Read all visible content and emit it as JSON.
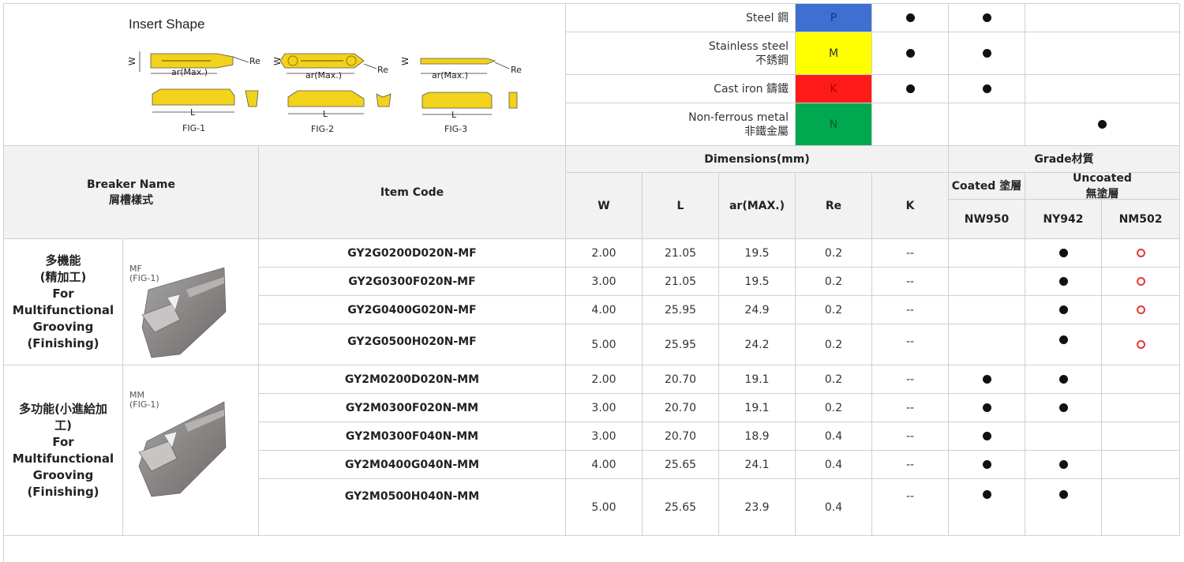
{
  "insert_shape": {
    "title": "Insert Shape",
    "figures": [
      {
        "caption": "FIG-1",
        "w": "W",
        "ar": "ar(Max.)",
        "re": "Re",
        "l": "L"
      },
      {
        "caption": "FIG-2",
        "w": "W",
        "ar": "ar(Max.)",
        "re": "Re",
        "l": "L"
      },
      {
        "caption": "FIG-3",
        "w": "W",
        "ar": "ar(Max.)",
        "re": "Re",
        "l": "L"
      }
    ]
  },
  "materials": [
    {
      "label": "Steel 鋼",
      "code": "P",
      "color": "#3f6fd0",
      "text_color": "#1a2f8a",
      "marks": [
        "dot",
        "dot",
        ""
      ]
    },
    {
      "label_line1": "Stainless steel",
      "label_line2": "不銹鋼",
      "code": "M",
      "color": "#ffff00",
      "text_color": "#333333",
      "marks": [
        "dot",
        "dot",
        ""
      ]
    },
    {
      "label": "Cast iron 鑄鐵",
      "code": "K",
      "color": "#ff1a1a",
      "text_color": "#b00000",
      "marks": [
        "dot",
        "dot",
        ""
      ]
    },
    {
      "label_line1": "Non-ferrous metal",
      "label_line2": "非鐵金屬",
      "code": "N",
      "color": "#00a94f",
      "text_color": "#0a5a2a",
      "marks": [
        "",
        "",
        "dot"
      ]
    }
  ],
  "headers": {
    "breaker_name": "Breaker Name",
    "breaker_name_zh": "屑槽樣式",
    "item_code": "Item Code",
    "dimensions": "Dimensions(mm)",
    "w": "W",
    "l": "L",
    "ar": "ar(MAX.)",
    "re": "Re",
    "k": "K",
    "grade": "Grade材質",
    "coated": "Coated 塗層",
    "uncoated": "Uncoated",
    "uncoated_zh": "無塗層",
    "nw950": "NW950",
    "ny942": "NY942",
    "nm502": "NM502"
  },
  "groups": [
    {
      "name_zh": "多機能",
      "name_zh2": "(精加工)",
      "name_en": "For Multifunctional",
      "name_en2": "Grooving",
      "name_en3": "(Finishing)",
      "thumb_label": "MF",
      "thumb_fig": "(FIG-1)",
      "rows": [
        {
          "code": "GY2G0200D020N-MF",
          "w": "2.00",
          "l": "21.05",
          "ar": "19.5",
          "re": "0.2",
          "k": "--",
          "nw950": "",
          "ny942": "dot",
          "nm502": "ring"
        },
        {
          "code": "GY2G0300F020N-MF",
          "w": "3.00",
          "l": "21.05",
          "ar": "19.5",
          "re": "0.2",
          "k": "--",
          "nw950": "",
          "ny942": "dot",
          "nm502": "ring"
        },
        {
          "code": "GY2G0400G020N-MF",
          "w": "4.00",
          "l": "25.95",
          "ar": "24.9",
          "re": "0.2",
          "k": "--",
          "nw950": "",
          "ny942": "dot",
          "nm502": "ring"
        },
        {
          "code": "GY2G0500H020N-MF",
          "w": "5.00",
          "l": "25.95",
          "ar": "24.2",
          "re": "0.2",
          "k": "--",
          "nw950": "",
          "ny942": "dot",
          "nm502": "ring"
        }
      ]
    },
    {
      "name_zh": "多功能(小進給加",
      "name_zh2": "工)",
      "name_en": "For Multifunctional",
      "name_en2": "Grooving",
      "name_en3": "(Finishing)",
      "thumb_label": "MM",
      "thumb_fig": "(FIG-1)",
      "rows": [
        {
          "code": "GY2M0200D020N-MM",
          "w": "2.00",
          "l": "20.70",
          "ar": "19.1",
          "re": "0.2",
          "k": "--",
          "nw950": "dot",
          "ny942": "dot",
          "nm502": ""
        },
        {
          "code": "GY2M0300F020N-MM",
          "w": "3.00",
          "l": "20.70",
          "ar": "19.1",
          "re": "0.2",
          "k": "--",
          "nw950": "dot",
          "ny942": "dot",
          "nm502": ""
        },
        {
          "code": "GY2M0300F040N-MM",
          "w": "3.00",
          "l": "20.70",
          "ar": "18.9",
          "re": "0.4",
          "k": "--",
          "nw950": "dot",
          "ny942": "",
          "nm502": ""
        },
        {
          "code": "GY2M0400G040N-MM",
          "w": "4.00",
          "l": "25.65",
          "ar": "24.1",
          "re": "0.4",
          "k": "--",
          "nw950": "dot",
          "ny942": "dot",
          "nm502": ""
        },
        {
          "code": "GY2M0500H040N-MM",
          "w": "5.00",
          "l": "25.65",
          "ar": "23.9",
          "re": "0.4",
          "k": "--",
          "nw950": "dot",
          "ny942": "dot",
          "nm502": ""
        }
      ]
    }
  ]
}
